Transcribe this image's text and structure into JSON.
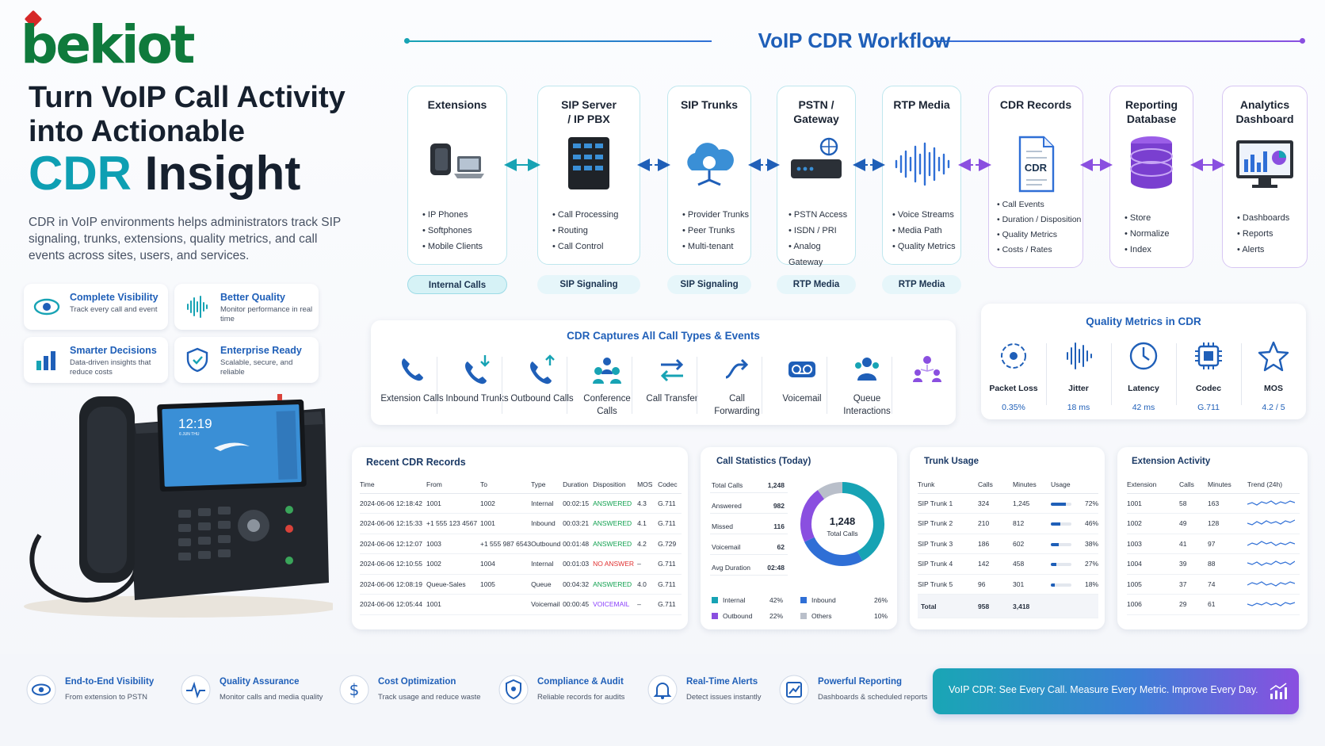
{
  "brand": {
    "logo": "bekiot"
  },
  "hero": {
    "line1": "Turn VoIP Call Activity",
    "line2": "into Actionable",
    "line3a": "CDR",
    "line3b": "Insight",
    "description": "CDR in VoIP environments helps administrators track SIP signaling, trunks, extensions, quality metrics, and call events across sites, users, and services."
  },
  "features": [
    {
      "title": "Complete Visibility",
      "subtitle": "Track every call and event",
      "icon": "eye-icon"
    },
    {
      "title": "Better Quality",
      "subtitle": "Monitor performance in real time",
      "icon": "waveform-icon"
    },
    {
      "title": "Smarter Decisions",
      "subtitle": "Data-driven insights that reduce costs",
      "icon": "bar-chart-icon"
    },
    {
      "title": "Enterprise Ready",
      "subtitle": "Scalable, secure, and reliable",
      "icon": "shield-icon"
    }
  ],
  "phone_screen": {
    "time": "12:19",
    "date": "6 JUN THU"
  },
  "workflow": {
    "title": "VoIP CDR Workflow",
    "steps": [
      {
        "title": "Extensions",
        "items": [
          "IP Phones",
          "Softphones",
          "Mobile Clients"
        ],
        "tag": "Internal Calls",
        "icon": "desk-phone-laptop-icon"
      },
      {
        "title": "SIP Server / IP PBX",
        "items": [
          "Call Processing",
          "Routing",
          "Call Control"
        ],
        "tag": "SIP Signaling",
        "icon": "server-rack-icon"
      },
      {
        "title": "SIP Trunks",
        "items": [
          "Provider Trunks",
          "Peer Trunks",
          "Multi-tenant"
        ],
        "tag": "SIP Signaling",
        "icon": "cloud-network-icon"
      },
      {
        "title": "PSTN / Gateway",
        "items": [
          "PSTN Access",
          "ISDN / PRI",
          "Analog Gateway"
        ],
        "tag": "RTP Media",
        "icon": "gateway-icon"
      },
      {
        "title": "RTP Media",
        "items": [
          "Voice Streams",
          "Media Path",
          "Quality Metrics"
        ],
        "tag": "RTP Media",
        "icon": "waveform-icon"
      },
      {
        "title": "CDR Records",
        "items": [
          "Call Events",
          "Duration / Disposition",
          "Quality Metrics",
          "Costs / Rates"
        ],
        "icon": "cdr-document-icon",
        "doc_label": "CDR"
      },
      {
        "title": "Reporting Database",
        "items": [
          "Store",
          "Normalize",
          "Index"
        ],
        "icon": "database-icon"
      },
      {
        "title": "Analytics Dashboard",
        "items": [
          "Dashboards",
          "Reports",
          "Alerts"
        ],
        "icon": "dashboard-monitor-icon"
      }
    ]
  },
  "captures": {
    "title": "CDR Captures All Call Types & Events",
    "items": [
      {
        "label": "Extension Calls",
        "icon": "phone-icon"
      },
      {
        "label": "Inbound Trunks",
        "icon": "phone-inbound-icon"
      },
      {
        "label": "Outbound Calls",
        "icon": "phone-outbound-icon"
      },
      {
        "label": "Conference Calls",
        "icon": "conference-icon"
      },
      {
        "label": "Call Transfer",
        "icon": "transfer-icon"
      },
      {
        "label": "Call Forwarding",
        "icon": "forward-icon"
      },
      {
        "label": "Voicemail",
        "icon": "voicemail-icon"
      },
      {
        "label": "Queue Interactions",
        "icon": "queue-icon"
      },
      {
        "label": "",
        "icon": "team-network-icon"
      }
    ]
  },
  "quality": {
    "title": "Quality Metrics in CDR",
    "items": [
      {
        "label": "Packet Loss",
        "value": "0.35%",
        "icon": "target-icon"
      },
      {
        "label": "Jitter",
        "value": "18 ms",
        "icon": "waveform-icon"
      },
      {
        "label": "Latency",
        "value": "42 ms",
        "icon": "clock-icon"
      },
      {
        "label": "Codec",
        "value": "G.711",
        "icon": "chip-icon"
      },
      {
        "label": "MOS",
        "value": "4.2 / 5",
        "icon": "star-icon"
      }
    ]
  },
  "recent": {
    "title": "Recent CDR Records",
    "headers": [
      "Time",
      "From",
      "To",
      "Type",
      "Duration",
      "Disposition",
      "MOS",
      "Codec"
    ],
    "rows": [
      [
        "2024-06-06 12:18:42",
        "1001",
        "1002",
        "Internal",
        "00:02:15",
        "ANSWERED",
        "4.3",
        "G.711"
      ],
      [
        "2024-06-06 12:15:33",
        "+1 555 123 4567",
        "1001",
        "Inbound",
        "00:03:21",
        "ANSWERED",
        "4.1",
        "G.711"
      ],
      [
        "2024-06-06 12:12:07",
        "1003",
        "+1 555 987 6543",
        "Outbound",
        "00:01:48",
        "ANSWERED",
        "4.2",
        "G.729"
      ],
      [
        "2024-06-06 12:10:55",
        "1002",
        "1004",
        "Internal",
        "00:01:03",
        "NO ANSWER",
        "–",
        "G.711"
      ],
      [
        "2024-06-06 12:08:19",
        "Queue-Sales",
        "1005",
        "Queue",
        "00:04:32",
        "ANSWERED",
        "4.0",
        "G.711"
      ],
      [
        "2024-06-06 12:05:44",
        "1001",
        "",
        "Voicemail",
        "00:00:45",
        "VOICEMAIL",
        "–",
        "G.711"
      ]
    ]
  },
  "stats": {
    "title": "Call Statistics (Today)",
    "rows": [
      {
        "label": "Total Calls",
        "value": "1,248"
      },
      {
        "label": "Answered",
        "value": "982"
      },
      {
        "label": "Missed",
        "value": "116"
      },
      {
        "label": "Voicemail",
        "value": "62"
      },
      {
        "label": "Avg Duration",
        "value": "02:48"
      }
    ],
    "donut_value": "1,248",
    "donut_label": "Total Calls",
    "legend": [
      {
        "name": "Internal",
        "pct": "42%",
        "share": 42,
        "color": "#17a3b4"
      },
      {
        "name": "Inbound",
        "pct": "26%",
        "share": 26,
        "color": "#2f6fd6"
      },
      {
        "name": "Outbound",
        "pct": "22%",
        "share": 22,
        "color": "#8a4fe0"
      },
      {
        "name": "Others",
        "pct": "10%",
        "share": 10,
        "color": "#b9bfca"
      }
    ]
  },
  "trunks": {
    "title": "Trunk Usage",
    "headers": [
      "Trunk",
      "Calls",
      "Minutes",
      "Usage"
    ],
    "rows": [
      {
        "name": "SIP Trunk 1",
        "calls": "324",
        "minutes": "1,245",
        "usage": "72%",
        "pct": 72
      },
      {
        "name": "SIP Trunk 2",
        "calls": "210",
        "minutes": "812",
        "usage": "46%",
        "pct": 46
      },
      {
        "name": "SIP Trunk 3",
        "calls": "186",
        "minutes": "602",
        "usage": "38%",
        "pct": 38
      },
      {
        "name": "SIP Trunk 4",
        "calls": "142",
        "minutes": "458",
        "usage": "27%",
        "pct": 27
      },
      {
        "name": "SIP Trunk 5",
        "calls": "96",
        "minutes": "301",
        "usage": "18%",
        "pct": 18
      }
    ],
    "total": {
      "label": "Total",
      "calls": "958",
      "minutes": "3,418"
    }
  },
  "extensions": {
    "title": "Extension Activity",
    "headers": [
      "Extension",
      "Calls",
      "Minutes",
      "Trend (24h)"
    ],
    "rows": [
      [
        "1001",
        "58",
        "163"
      ],
      [
        "1002",
        "49",
        "128"
      ],
      [
        "1003",
        "41",
        "97"
      ],
      [
        "1004",
        "39",
        "88"
      ],
      [
        "1005",
        "37",
        "74"
      ],
      [
        "1006",
        "29",
        "61"
      ]
    ]
  },
  "bottom": {
    "items": [
      {
        "title": "End-to-End Visibility",
        "subtitle": "From extension to PSTN",
        "icon": "eye-icon"
      },
      {
        "title": "Quality Assurance",
        "subtitle": "Monitor calls and media quality",
        "icon": "pulse-icon"
      },
      {
        "title": "Cost Optimization",
        "subtitle": "Track usage and reduce waste",
        "icon": "dollar-icon"
      },
      {
        "title": "Compliance & Audit",
        "subtitle": "Reliable records for audits",
        "icon": "shield-icon"
      },
      {
        "title": "Real-Time Alerts",
        "subtitle": "Detect issues instantly",
        "icon": "bell-icon"
      },
      {
        "title": "Powerful Reporting",
        "subtitle": "Dashboards & scheduled reports",
        "icon": "report-chart-icon"
      }
    ],
    "banner": "VoIP CDR: See Every Call.  Measure Every Metric.  Improve Every Day."
  },
  "colors": {
    "teal": "#17a3b4",
    "blue": "#1f5fb8",
    "purple": "#8a4fe0",
    "green": "#12a150",
    "red": "#e03131"
  }
}
